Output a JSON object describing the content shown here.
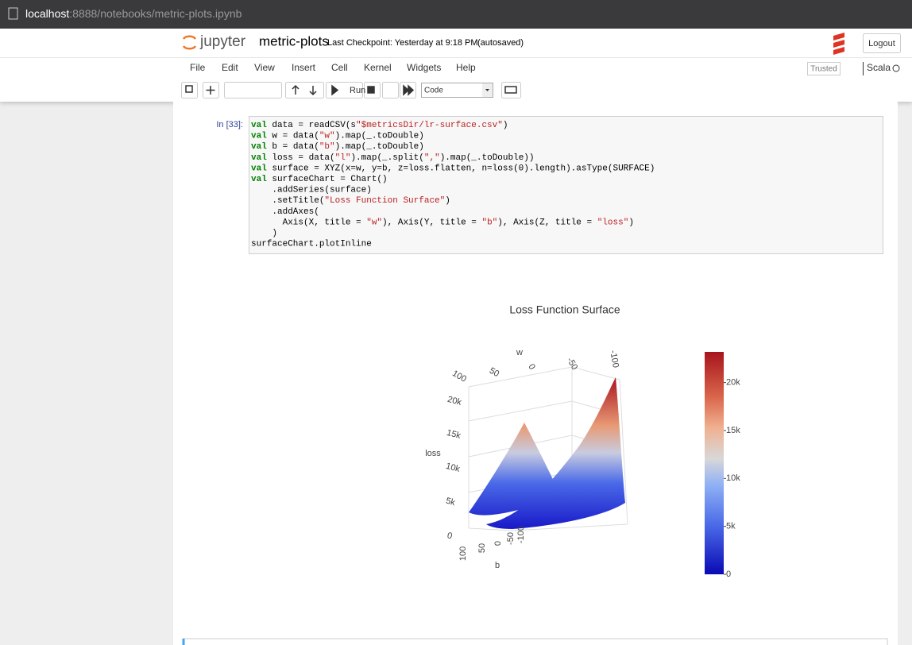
{
  "browser": {
    "host": "localhost",
    "path": ":8888/notebooks/metric-plots.ipynb"
  },
  "header": {
    "logo": "jupyter",
    "notebook_name": "metric-plots",
    "checkpoint": "Last Checkpoint: Yesterday at 9:18 PM",
    "autosave": "(autosaved)",
    "logout": "Logout"
  },
  "menu": [
    "File",
    "Edit",
    "View",
    "Insert",
    "Cell",
    "Kernel",
    "Widgets",
    "Help"
  ],
  "trusted": "Trusted",
  "kernel": "Scala",
  "toolbar": {
    "run": "Run",
    "cell_type": "Code"
  },
  "cell": {
    "prompt": "In [33]:",
    "code": [
      "val data = readCSV(s\"$metricsDir/lr-surface.csv\")",
      "val w = data(\"w\").map(_.toDouble)",
      "val b = data(\"b\").map(_.toDouble)",
      "val loss = data(\"l\").map(_.split(\",\").map(_.toDouble))",
      "val surface = XYZ(x=w, y=b, z=loss.flatten, n=loss(0).length).asType(SURFACE)",
      "val surfaceChart = Chart()",
      "    .addSeries(surface)",
      "    .setTitle(\"Loss Function Surface\")",
      "    .addAxes(",
      "      Axis(X, title = \"w\"), Axis(Y, title = \"b\"), Axis(Z, title = \"loss\")",
      "    )",
      "surfaceChart.plotInline"
    ]
  },
  "plot": {
    "title": "Loss Function Surface",
    "x_title": "w",
    "y_title": "b",
    "z_title": "loss",
    "x_ticks": [
      100,
      50,
      0,
      -50,
      -100
    ],
    "y_ticks": [
      100,
      50,
      0,
      -50,
      -100
    ],
    "z_ticks": [
      0,
      {
        "value": 5000,
        "label": "5k"
      },
      {
        "value": 10000,
        "label": "10k"
      },
      {
        "value": 15000,
        "label": "15k"
      },
      {
        "value": 20000,
        "label": "20k"
      }
    ],
    "colorbar": {
      "lim": [
        0,
        23200
      ],
      "ticks": [
        0,
        {
          "value": 5000,
          "label": "5k"
        },
        {
          "value": 10000,
          "label": "10k"
        },
        {
          "value": 15000,
          "label": "15k"
        },
        {
          "value": 20000,
          "label": "20k"
        }
      ]
    }
  }
}
